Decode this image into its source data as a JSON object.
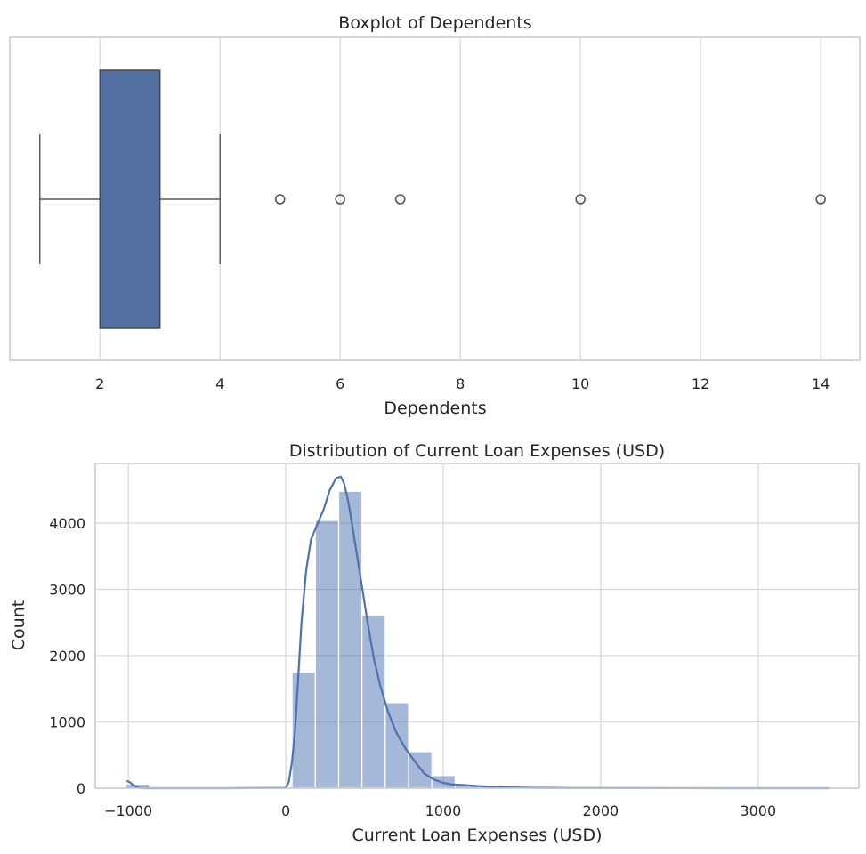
{
  "chart_data": [
    {
      "type": "box",
      "title": "Boxplot of Dependents",
      "xlabel": "Dependents",
      "ylabel": "",
      "xlim": [
        0.5,
        14.65
      ],
      "xticks": [
        2,
        4,
        6,
        8,
        10,
        12,
        14
      ],
      "xtick_labels": [
        "2",
        "4",
        "6",
        "8",
        "10",
        "12",
        "14"
      ],
      "grid": true,
      "color": "#5470a3",
      "box": {
        "whisker_low": 1,
        "q1": 2,
        "q3": 3,
        "whisker_high": 4
      },
      "outliers": [
        5,
        6,
        7,
        10,
        14
      ]
    },
    {
      "type": "histogram",
      "title": "Distribution of Current Loan Expenses (USD)",
      "xlabel": "Current Loan Expenses (USD)",
      "ylabel": "Count",
      "xlim": [
        -1210,
        3640
      ],
      "ylim": [
        0,
        4900
      ],
      "xticks": [
        -1000,
        0,
        1000,
        2000,
        3000
      ],
      "xtick_labels": [
        "−1000",
        "0",
        "1000",
        "2000",
        "3000"
      ],
      "yticks": [
        0,
        1000,
        2000,
        3000,
        4000
      ],
      "ytick_labels": [
        "0",
        "1000",
        "2000",
        "3000",
        "4000"
      ],
      "grid": true,
      "color": "#4c72b0",
      "bin_width": 148,
      "bins": [
        {
          "x0": -1015,
          "x1": -867,
          "count": 60
        },
        {
          "x0": 40,
          "x1": 188,
          "count": 1750
        },
        {
          "x0": 188,
          "x1": 336,
          "count": 4040
        },
        {
          "x0": 336,
          "x1": 484,
          "count": 4480
        },
        {
          "x0": 484,
          "x1": 632,
          "count": 2610
        },
        {
          "x0": 632,
          "x1": 780,
          "count": 1290
        },
        {
          "x0": 780,
          "x1": 928,
          "count": 550
        },
        {
          "x0": 928,
          "x1": 1076,
          "count": 190
        },
        {
          "x0": 1076,
          "x1": 1224,
          "count": 40
        },
        {
          "x0": 1224,
          "x1": 1372,
          "count": 20
        }
      ],
      "kde": {
        "x": [
          -1010,
          -990,
          -970,
          -950,
          -930,
          -900,
          -850,
          -700,
          -400,
          0,
          20,
          40,
          60,
          80,
          100,
          130,
          160,
          200,
          240,
          280,
          320,
          350,
          370,
          390,
          410,
          440,
          480,
          520,
          560,
          600,
          650,
          700,
          760,
          820,
          880,
          940,
          1000,
          1060,
          1120,
          1200,
          1300,
          1400,
          1600,
          1800,
          2200,
          2800,
          3450
        ],
        "y": [
          110,
          90,
          50,
          20,
          5,
          0,
          0,
          0,
          0,
          5,
          100,
          400,
          900,
          1700,
          2500,
          3300,
          3750,
          3980,
          4200,
          4500,
          4680,
          4700,
          4600,
          4400,
          4150,
          3700,
          3100,
          2500,
          1950,
          1550,
          1150,
          850,
          600,
          400,
          220,
          130,
          80,
          55,
          50,
          35,
          20,
          12,
          6,
          3,
          1,
          0,
          0
        ]
      }
    }
  ]
}
